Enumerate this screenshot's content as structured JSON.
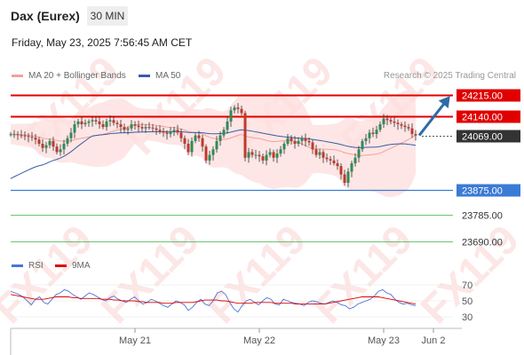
{
  "header": {
    "instrument": "Dax (Eurex)",
    "timeframe": "30 MIN",
    "datetime": "Friday, May 23, 2025 7:56:45 AM CET"
  },
  "legend": {
    "bollinger": "MA 20 + Bollinger Bands",
    "ma50": "MA 50",
    "research": "Research © 2025 Trading Central"
  },
  "rsi_legend": {
    "rsi": "RSI",
    "ma9": "9MA"
  },
  "watermark": "FX119",
  "colors": {
    "resistance": "#e00000",
    "support": "#3a7bd5",
    "target": "#3cb043",
    "current": "#333333",
    "up_candle": "#2e8b57",
    "down_candle": "#c0392b",
    "bollinger": "#f4a09a",
    "ma50": "#3b5ba5",
    "arrow": "#2c6ca8",
    "watermark": "#fbd3d3"
  },
  "chart_data": {
    "type": "candlestick",
    "x_axis_labels": [
      {
        "label": "May 21",
        "idx": 35
      },
      {
        "label": "May 22",
        "idx": 70
      },
      {
        "label": "May 23",
        "idx": 105
      },
      {
        "label": "Jun 2",
        "idx": 119
      }
    ],
    "levels": [
      {
        "value": 24215.0,
        "label": "24215.00",
        "kind": "resistance"
      },
      {
        "value": 24140.0,
        "label": "24140.00",
        "kind": "resistance"
      },
      {
        "value": 24069.0,
        "label": "24069.00",
        "kind": "current"
      },
      {
        "value": 23875.0,
        "label": "23875.00",
        "kind": "support"
      },
      {
        "value": 23785.0,
        "label": "23785.00",
        "kind": "target"
      },
      {
        "value": 23690.0,
        "label": "23690.00",
        "kind": "target"
      }
    ],
    "price_range": [
      23690,
      24215
    ],
    "candles_close": [
      24074,
      24074,
      24071,
      24070,
      24068,
      24065,
      24062,
      24055,
      24040,
      24025,
      24035,
      24050,
      24030,
      24010,
      24020,
      24040,
      24060,
      24080,
      24110,
      24120,
      24110,
      24115,
      24120,
      24125,
      24120,
      24110,
      24100,
      24120,
      24125,
      24115,
      24110,
      24100,
      24090,
      24095,
      24110,
      24105,
      24100,
      24095,
      24100,
      24098,
      24095,
      24090,
      24085,
      24080,
      24075,
      24085,
      24090,
      24080,
      24060,
      24040,
      24010,
      24050,
      24070,
      24060,
      24030,
      23980,
      24000,
      24020,
      24050,
      24070,
      24090,
      24120,
      24160,
      24170,
      24165,
      24150,
      23990,
      24010,
      24000,
      24000,
      23995,
      23980,
      24000,
      24010,
      23990,
      24005,
      24020,
      24040,
      24060,
      24050,
      24040,
      24050,
      24060,
      24050,
      24045,
      24020,
      24000,
      24010,
      23990,
      23985,
      23980,
      23970,
      23960,
      23930,
      23900,
      23940,
      23970,
      23990,
      24020,
      24050,
      24060,
      24080,
      24075,
      24090,
      24110,
      24130,
      24125,
      24120,
      24115,
      24110,
      24105,
      24100,
      24095,
      24075,
      24070
    ],
    "rsi_ticks": [
      70,
      50,
      30
    ],
    "rsi_range": [
      20,
      80
    ],
    "rsi_series": [
      62,
      60,
      58,
      55,
      50,
      45,
      52,
      55,
      48,
      46,
      52,
      58,
      60,
      64,
      62,
      58,
      55,
      52,
      56,
      60,
      58,
      55,
      52,
      50,
      54,
      56,
      52,
      50,
      48,
      52,
      55,
      50,
      46,
      48,
      52,
      50,
      47,
      44,
      42,
      46,
      50,
      48,
      45,
      38,
      42,
      48,
      52,
      46,
      44,
      50,
      60,
      62,
      58,
      48,
      40,
      36,
      44,
      50,
      52,
      48,
      45,
      50,
      54,
      52,
      46,
      45,
      52,
      50,
      48,
      47,
      46,
      44,
      48,
      50,
      49,
      47,
      46,
      48,
      50,
      48,
      45,
      44,
      40,
      42,
      46,
      48,
      50,
      52,
      56,
      62,
      64,
      60,
      58,
      52,
      48,
      46,
      47,
      45,
      44
    ],
    "rsi_ma_series": [
      58,
      57,
      56,
      55,
      54,
      53,
      52,
      52,
      52,
      53,
      54,
      55,
      55,
      55,
      55,
      54,
      54,
      53,
      53,
      53,
      53,
      53,
      52,
      52,
      52,
      51,
      51,
      50,
      50,
      50,
      50,
      49,
      49,
      48,
      48,
      48,
      48,
      47,
      47,
      47,
      48,
      48,
      48,
      48,
      48,
      49,
      50,
      51,
      51,
      51,
      51,
      50,
      50,
      49,
      48,
      47,
      47,
      47,
      47,
      48,
      48,
      48,
      48,
      48,
      47,
      47,
      47,
      47,
      47,
      46,
      46,
      46,
      46,
      46,
      46,
      46,
      46,
      47,
      48,
      49,
      50,
      51,
      52,
      53,
      54,
      55,
      55,
      55,
      55,
      55,
      54,
      53,
      52,
      51,
      50,
      49,
      48,
      47,
      46
    ]
  }
}
